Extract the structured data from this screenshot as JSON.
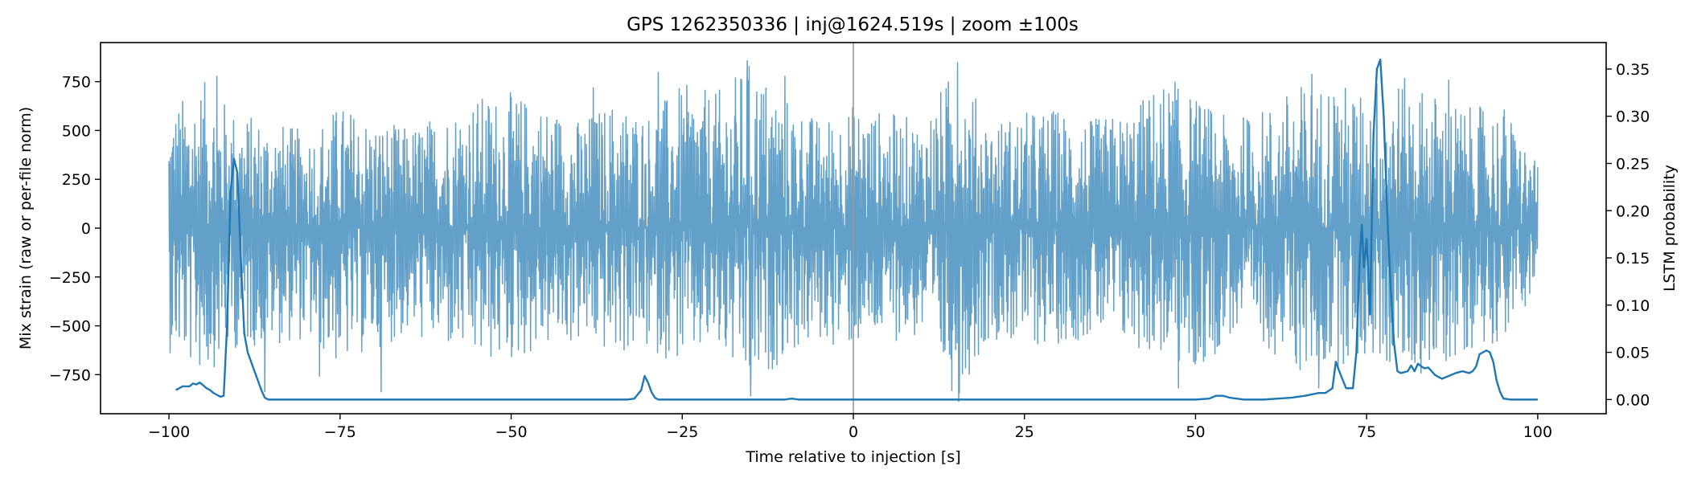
{
  "chart_data": {
    "type": "line",
    "title": "GPS 1262350336 | inj@1624.519s | zoom ±100s",
    "xlabel": "Time relative to injection [s]",
    "ylabel_left": "Mix strain (raw or per-file norm)",
    "ylabel_right": "LSTM probability",
    "xlim": [
      -110,
      110
    ],
    "ylim_left": [
      -950,
      950
    ],
    "ylim_right": [
      -0.015,
      0.378
    ],
    "x_ticks": [
      -100,
      -75,
      -50,
      -25,
      0,
      25,
      50,
      75,
      100
    ],
    "x_tick_labels": [
      "−100",
      "−75",
      "−50",
      "−25",
      "0",
      "25",
      "50",
      "75",
      "100"
    ],
    "y_ticks_left": [
      750,
      500,
      250,
      0,
      -250,
      -500,
      -750
    ],
    "y_tick_labels_left": [
      "750",
      "500",
      "250",
      "0",
      "−250",
      "−500",
      "−750"
    ],
    "y_ticks_right": [
      0.35,
      0.3,
      0.25,
      0.2,
      0.15,
      0.1,
      0.05,
      0.0
    ],
    "y_tick_labels_right": [
      "0.35",
      "0.30",
      "0.25",
      "0.20",
      "0.15",
      "0.10",
      "0.05",
      "0.00"
    ],
    "injection_marker_x": 0,
    "grid": false,
    "colors": {
      "strain": "#1f77b4",
      "strain_opacity": 0.7,
      "probability": "#1f77b4",
      "marker": "#999999"
    },
    "series": [
      {
        "axis": "left",
        "note_visible": false,
        "x_range": [
          -100,
          100
        ],
        "envelope": {
          "x": [
            -100,
            -95,
            -90,
            -85,
            -80,
            -75,
            -70,
            -65,
            -60,
            -55,
            -50,
            -45,
            -40,
            -35,
            -30,
            -25,
            -20,
            -15,
            -10,
            -5,
            0,
            5,
            10,
            15,
            20,
            25,
            30,
            35,
            40,
            45,
            50,
            55,
            60,
            65,
            70,
            75,
            80,
            85,
            90,
            95,
            100
          ],
          "upper": [
            620,
            760,
            600,
            560,
            500,
            640,
            560,
            520,
            600,
            680,
            700,
            640,
            560,
            660,
            600,
            740,
            700,
            860,
            680,
            560,
            640,
            600,
            560,
            840,
            560,
            600,
            620,
            560,
            600,
            760,
            680,
            560,
            620,
            740,
            780,
            680,
            780,
            700,
            620,
            640,
            320
          ],
          "lower": [
            -640,
            -760,
            -620,
            -600,
            -580,
            -720,
            -620,
            -560,
            -620,
            -700,
            -700,
            -620,
            -600,
            -660,
            -640,
            -700,
            -640,
            -860,
            -660,
            -600,
            -620,
            -580,
            -580,
            -880,
            -560,
            -620,
            -600,
            -560,
            -620,
            -660,
            -780,
            -560,
            -600,
            -760,
            -720,
            -680,
            -740,
            -760,
            -620,
            -580,
            -300
          ]
        },
        "spikes": [
          {
            "x": -93.0,
            "y": 780
          },
          {
            "x": -86.0,
            "y": -840
          },
          {
            "x": -78.0,
            "y": -760
          },
          {
            "x": -69.0,
            "y": -840
          },
          {
            "x": -38.0,
            "y": 720
          },
          {
            "x": -28.5,
            "y": 800
          },
          {
            "x": -15.5,
            "y": 860
          },
          {
            "x": -15.0,
            "y": -860
          },
          {
            "x": -10.0,
            "y": 780
          },
          {
            "x": 15.2,
            "y": 850
          },
          {
            "x": 15.4,
            "y": -890
          },
          {
            "x": 47.0,
            "y": 750
          },
          {
            "x": 47.5,
            "y": -820
          },
          {
            "x": 67.0,
            "y": 790
          },
          {
            "x": 68.0,
            "y": -820
          },
          {
            "x": 76.5,
            "y": 740
          },
          {
            "x": 87.0,
            "y": 760
          }
        ]
      },
      {
        "axis": "right",
        "x": [
          -99.0,
          -98.0,
          -97.0,
          -96.5,
          -96.0,
          -95.5,
          -95.0,
          -94.5,
          -94.0,
          -93.5,
          -93.0,
          -92.5,
          -92.0,
          -91.5,
          -91.0,
          -90.5,
          -90.0,
          -89.5,
          -89.0,
          -88.5,
          -88.0,
          -87.5,
          -87.0,
          -86.5,
          -86.0,
          -85.5,
          -80.0,
          -60.0,
          -40.0,
          -33.0,
          -32.0,
          -31.0,
          -30.5,
          -30.0,
          -29.5,
          -29.0,
          -28.5,
          -27.0,
          -20.0,
          -10.0,
          -9.0,
          -8.0,
          -5.0,
          0.0,
          10.0,
          20.0,
          30.0,
          40.0,
          50.0,
          52.0,
          53.0,
          54.0,
          55.0,
          57.0,
          60.0,
          62.0,
          64.0,
          66.0,
          68.0,
          69.0,
          70.0,
          70.5,
          71.0,
          72.0,
          73.0,
          73.5,
          74.0,
          74.3,
          74.6,
          75.0,
          75.5,
          76.0,
          76.5,
          77.0,
          77.5,
          78.0,
          78.5,
          79.0,
          79.5,
          80.0,
          81.0,
          81.5,
          82.0,
          82.5,
          83.0,
          83.5,
          84.0,
          84.5,
          85.0,
          85.5,
          86.0,
          87.0,
          88.0,
          89.0,
          90.0,
          90.5,
          91.0,
          91.5,
          92.0,
          92.5,
          93.0,
          93.5,
          94.0,
          94.5,
          95.0,
          96.0,
          100.0
        ],
        "y": [
          0.01,
          0.014,
          0.014,
          0.017,
          0.016,
          0.018,
          0.015,
          0.012,
          0.01,
          0.007,
          0.005,
          0.003,
          0.004,
          0.08,
          0.22,
          0.255,
          0.24,
          0.15,
          0.07,
          0.05,
          0.04,
          0.03,
          0.02,
          0.01,
          0.002,
          0.0,
          0.0,
          0.0,
          0.0,
          0.0,
          0.001,
          0.01,
          0.025,
          0.018,
          0.008,
          0.002,
          0.0,
          0.0,
          0.0,
          0.0,
          0.001,
          0.0,
          0.0,
          0.0,
          0.0,
          0.0,
          0.0,
          0.0,
          0.0,
          0.001,
          0.004,
          0.004,
          0.002,
          0.0,
          0.0,
          0.001,
          0.002,
          0.004,
          0.007,
          0.007,
          0.012,
          0.04,
          0.03,
          0.012,
          0.012,
          0.05,
          0.15,
          0.185,
          0.14,
          0.17,
          0.09,
          0.28,
          0.35,
          0.36,
          0.3,
          0.2,
          0.12,
          0.06,
          0.03,
          0.028,
          0.03,
          0.036,
          0.03,
          0.038,
          0.035,
          0.033,
          0.034,
          0.03,
          0.026,
          0.024,
          0.022,
          0.025,
          0.028,
          0.03,
          0.028,
          0.03,
          0.035,
          0.048,
          0.05,
          0.052,
          0.05,
          0.04,
          0.02,
          0.008,
          0.001,
          0.0,
          0.0
        ]
      }
    ]
  }
}
